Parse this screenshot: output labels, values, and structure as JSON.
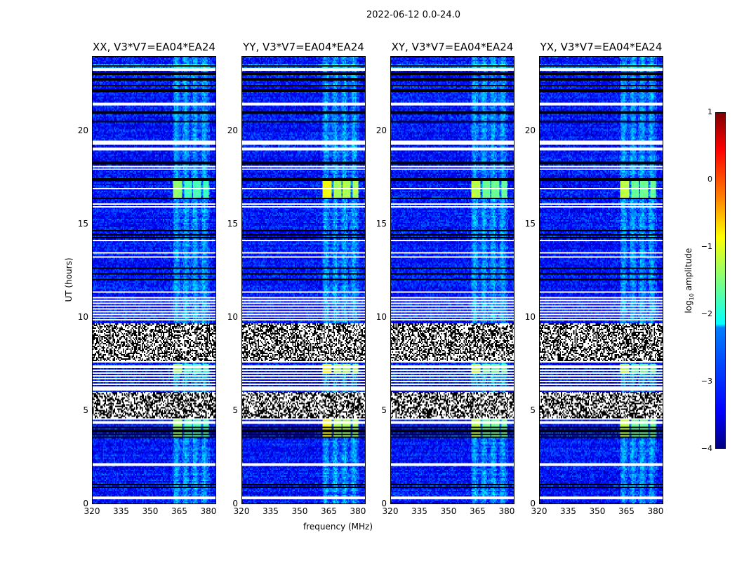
{
  "suptitle": "2022-06-12 0.0-24.0",
  "panels": [
    {
      "title": "XX, V3*V7=EA04*EA24",
      "peak": -1.4
    },
    {
      "title": "YY, V3*V7=EA04*EA24",
      "peak": -0.9
    },
    {
      "title": "XY, V3*V7=EA04*EA24",
      "peak": -1.2
    },
    {
      "title": "YX, V3*V7=EA04*EA24",
      "peak": -1.2
    }
  ],
  "chart_data": {
    "type": "heatmap",
    "title": "2022-06-12 0.0-24.0",
    "xlabel": "frequency (MHz)",
    "ylabel": "UT (hours)",
    "xlim": [
      320,
      384
    ],
    "ylim": [
      0,
      24
    ],
    "xticks": [
      "320",
      "335",
      "350",
      "365",
      "380"
    ],
    "xtick_values": [
      320,
      335,
      350,
      365,
      380
    ],
    "yticks": [
      "0",
      "5",
      "10",
      "15",
      "20"
    ],
    "ytick_values": [
      0,
      5,
      10,
      15,
      20
    ],
    "colorbar": {
      "label": "log10 amplitude",
      "label_main": "log",
      "label_sub": "10",
      "label_rest": " amplitude",
      "range": [
        -4,
        1
      ],
      "ticks": [
        "1",
        "0",
        "−1",
        "−2",
        "−3",
        "−4"
      ],
      "tick_values": [
        1,
        0,
        -1,
        -2,
        -3,
        -4
      ]
    },
    "background_level": -3.3,
    "rfi_band_mhz": [
      362,
      381
    ],
    "rfi_band_level": -2.6,
    "bright_blocks_hours": [
      [
        16.4,
        17.5
      ],
      [
        7.0,
        7.5
      ],
      [
        3.5,
        4.5
      ]
    ],
    "bright_subbands_mhz": [
      [
        362,
        366.5
      ],
      [
        367.5,
        371.5
      ],
      [
        372.5,
        376.5
      ],
      [
        377.5,
        380.5
      ]
    ],
    "flagged_white_hours": [
      23.32,
      21.45,
      21.5,
      19.3,
      19.4,
      19.45,
      19.04,
      18.1,
      17.95,
      16.9,
      16.11,
      15.92,
      14.12,
      13.48,
      13.26,
      11.38,
      7.59,
      7.4,
      6.16,
      4.54,
      4.36,
      2.1,
      0.3
    ],
    "flagged_black_hours": [
      23.5,
      23.1,
      22.8,
      22.46,
      22.2,
      21.0,
      20.5,
      18.3,
      17.4,
      16.4,
      14.65,
      14.42,
      14.27,
      12.66,
      12.32,
      12.06,
      4.1,
      3.9,
      3.72,
      3.53,
      1.0,
      0.83
    ],
    "speckled_grey_hours": [
      [
        7.6,
        9.7
      ],
      [
        4.6,
        6.0
      ]
    ],
    "striped_hours": [
      [
        9.8,
        11.2
      ],
      [
        6.2,
        7.35
      ]
    ],
    "legend": "colorbar-right"
  }
}
